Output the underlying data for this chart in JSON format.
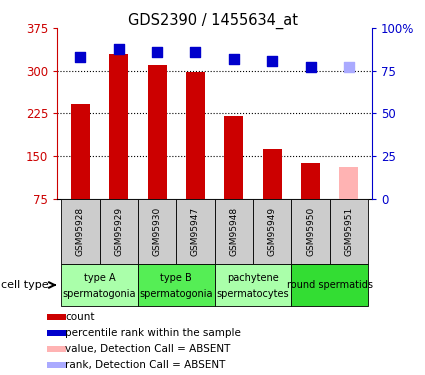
{
  "title": "GDS2390 / 1455634_at",
  "samples": [
    "GSM95928",
    "GSM95929",
    "GSM95930",
    "GSM95947",
    "GSM95948",
    "GSM95949",
    "GSM95950",
    "GSM95951"
  ],
  "bar_values": [
    242,
    330,
    310,
    298,
    220,
    163,
    138,
    130
  ],
  "bar_colors": [
    "#cc0000",
    "#cc0000",
    "#cc0000",
    "#cc0000",
    "#cc0000",
    "#cc0000",
    "#cc0000",
    "#ffb3b3"
  ],
  "rank_values": [
    83,
    88,
    86,
    86,
    82,
    81,
    77,
    77
  ],
  "rank_colors": [
    "#0000cc",
    "#0000cc",
    "#0000cc",
    "#0000cc",
    "#0000cc",
    "#0000cc",
    "#0000cc",
    "#aaaaff"
  ],
  "ylim_left": [
    75,
    375
  ],
  "ylim_right": [
    0,
    100
  ],
  "yticks_left": [
    75,
    150,
    225,
    300,
    375
  ],
  "yticks_right": [
    0,
    25,
    50,
    75,
    100
  ],
  "ytick_labels_right": [
    "0",
    "25",
    "50",
    "75",
    "100%"
  ],
  "cell_groups": [
    {
      "label1": "type A",
      "label2": "spermatogonia",
      "start": 0,
      "end": 1,
      "color": "#aaffaa"
    },
    {
      "label1": "type B",
      "label2": "spermatogonia",
      "start": 2,
      "end": 3,
      "color": "#55ee55"
    },
    {
      "label1": "pachytene",
      "label2": "spermatocytes",
      "start": 4,
      "end": 5,
      "color": "#aaffaa"
    },
    {
      "label1": "round spermatids",
      "label2": "",
      "start": 6,
      "end": 7,
      "color": "#33dd33"
    }
  ],
  "ylabel_left_color": "#cc0000",
  "ylabel_right_color": "#0000cc",
  "grid_color": "#000000",
  "sample_box_color": "#cccccc",
  "cell_label_text": "cell type",
  "legend_items": [
    {
      "label": "count",
      "color": "#cc0000"
    },
    {
      "label": "percentile rank within the sample",
      "color": "#0000cc"
    },
    {
      "label": "value, Detection Call = ABSENT",
      "color": "#ffb3b3"
    },
    {
      "label": "rank, Detection Call = ABSENT",
      "color": "#aaaaff"
    }
  ],
  "bar_width": 0.5,
  "rank_marker_size": 48,
  "rank_marker": "s"
}
